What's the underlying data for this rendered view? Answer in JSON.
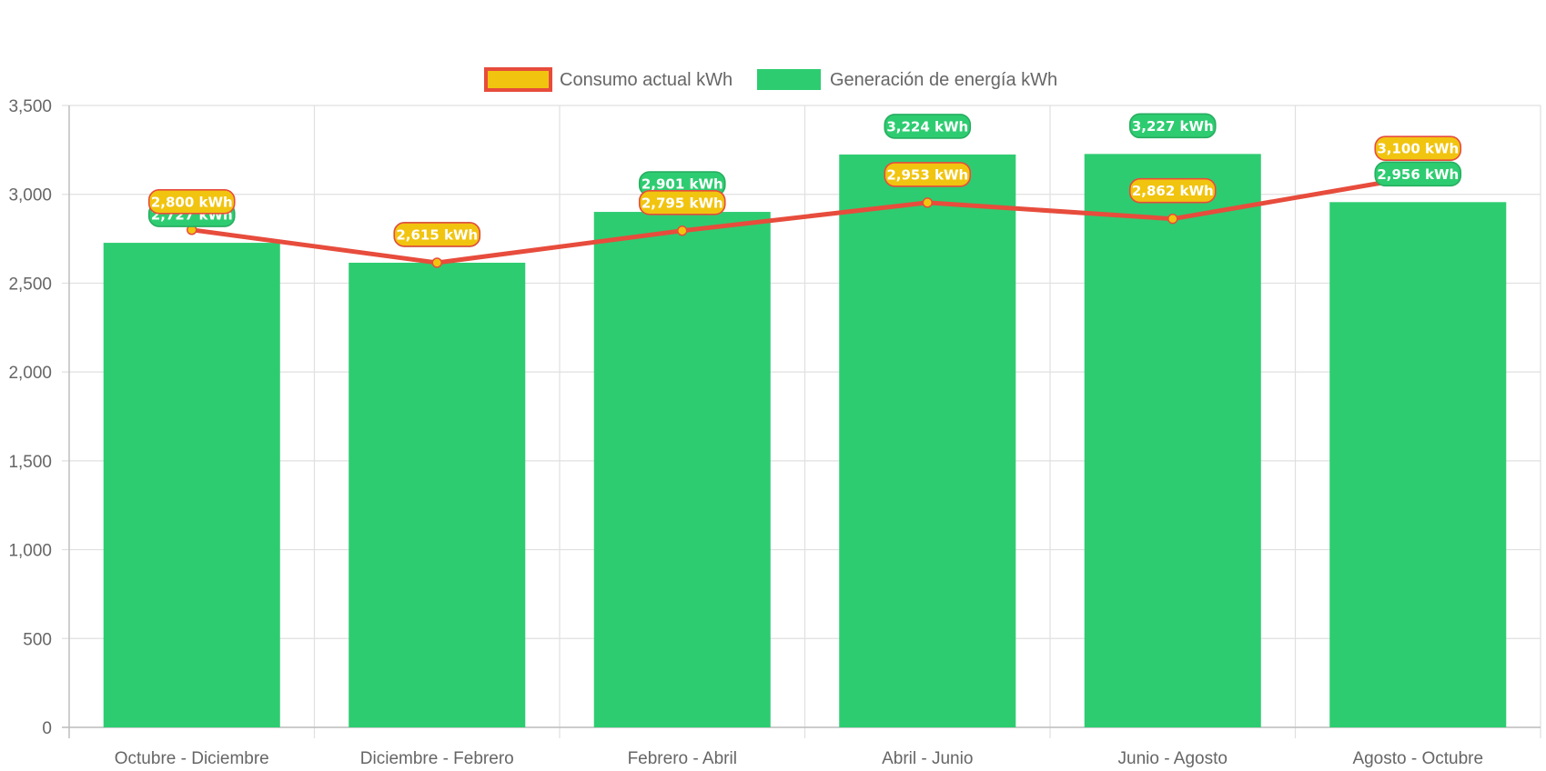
{
  "chart_data": {
    "type": "bar",
    "categories": [
      "Octubre - Diciembre",
      "Diciembre - Febrero",
      "Febrero - Abril",
      "Abril - Junio",
      "Junio - Agosto",
      "Agosto - Octubre"
    ],
    "series": [
      {
        "name": "Consumo actual kWh",
        "type": "line",
        "values": [
          2800,
          2615,
          2795,
          2953,
          2862,
          3100
        ],
        "labels": [
          "2,800 kWh",
          "2,615 kWh",
          "2,795 kWh",
          "2,953 kWh",
          "2,862 kWh",
          "3,100 kWh"
        ],
        "color": "#e74c3c",
        "point_color": "#f1c40f"
      },
      {
        "name": "Generación de energía kWh",
        "type": "bar",
        "values": [
          2727,
          2615,
          2901,
          3224,
          3227,
          2956
        ],
        "labels": [
          "2,727 kWh",
          "2,615 kWh",
          "2,901 kWh",
          "3,224 kWh",
          "3,227 kWh",
          "2,956 kWh"
        ],
        "color": "#2ecc71"
      }
    ],
    "ylim": [
      0,
      3500
    ],
    "yticks": [
      0,
      500,
      1000,
      1500,
      2000,
      2500,
      3000,
      3500
    ],
    "ytick_labels": [
      "0",
      "500",
      "1,000",
      "1,500",
      "2,000",
      "2,500",
      "3,000",
      "3,500"
    ],
    "grid": true,
    "legend_position": "top",
    "title": "",
    "xlabel": "",
    "ylabel": ""
  },
  "colors": {
    "grid": "#e0e0e0",
    "axis": "#bdbdbd",
    "text": "#666666",
    "line": "#e74c3c",
    "point": "#f1c40f",
    "bar": "#2ecc71",
    "bar_label_border": "#27ae60"
  }
}
